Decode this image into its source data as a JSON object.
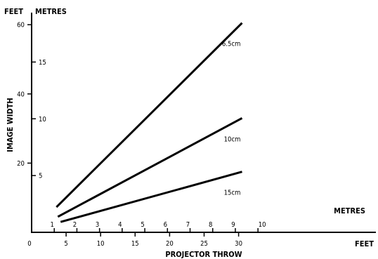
{
  "chart_data": {
    "type": "line",
    "xlabel": "PROJECTOR THROW",
    "ylabel": "IMAGE WIDTH",
    "x_feet_unit": "FEET",
    "x_metres_unit": "METRES",
    "y_feet_unit": "FEET",
    "y_metres_unit": "METRES",
    "x_feet_ticks": [
      "0",
      "5",
      "10",
      "15",
      "20",
      "25",
      "30"
    ],
    "x_metres_ticks": [
      "1",
      "2",
      "3",
      "4",
      "5",
      "6",
      "7",
      "8",
      "9",
      "10"
    ],
    "y_feet_ticks": [
      "20",
      "40",
      "60"
    ],
    "y_metres_ticks": [
      "5",
      "10",
      "15"
    ],
    "xlim": [
      0,
      30.5
    ],
    "ylim": [
      0,
      60
    ],
    "grid": false,
    "series": [
      {
        "name": "6.5cm",
        "x": [
          3.6,
          30.5
        ],
        "y": [
          7.3,
          60.5
        ]
      },
      {
        "name": "10cm",
        "x": [
          3.8,
          30.5
        ],
        "y": [
          4.5,
          33.0
        ]
      },
      {
        "name": "15cm",
        "x": [
          4.2,
          30.5
        ],
        "y": [
          3.0,
          17.5
        ]
      }
    ]
  }
}
